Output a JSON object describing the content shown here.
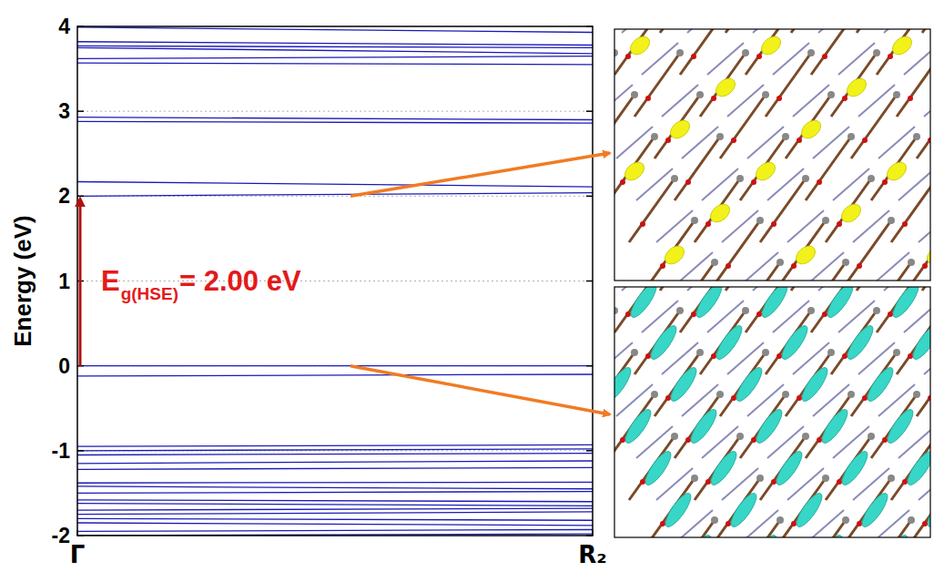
{
  "chart_data": {
    "type": "line",
    "y_label": "Energy (eV)",
    "x": [
      0,
      1
    ],
    "xlim": [
      0,
      1
    ],
    "xticks": [
      {
        "value": 0,
        "label": "Γ"
      },
      {
        "value": 1,
        "label": "R₂"
      }
    ],
    "ylim": [
      -2,
      4
    ],
    "yticks": [
      -2,
      -1,
      0,
      1,
      2,
      3,
      4
    ],
    "grid": true,
    "color": "#1a1ab8",
    "annotation": {
      "text": "E",
      "subscript": "g(HSE)",
      "suffix": "= 2.00 eV",
      "from": 0,
      "to": 2
    },
    "series": [
      {
        "values": [
          3.99,
          3.93
        ]
      },
      {
        "values": [
          3.82,
          3.78
        ]
      },
      {
        "values": [
          3.77,
          3.75
        ]
      },
      {
        "values": [
          3.75,
          3.68
        ]
      },
      {
        "values": [
          3.62,
          3.65
        ]
      },
      {
        "values": [
          3.57,
          3.55
        ]
      },
      {
        "values": [
          2.93,
          2.9
        ]
      },
      {
        "values": [
          2.88,
          2.86
        ]
      },
      {
        "values": [
          2.17,
          2.11
        ]
      },
      {
        "values": [
          2.0,
          2.04
        ]
      },
      {
        "values": [
          0.0,
          0.0
        ]
      },
      {
        "values": [
          -0.12,
          -0.1
        ]
      },
      {
        "values": [
          -0.95,
          -0.93
        ]
      },
      {
        "values": [
          -1.0,
          -0.98
        ]
      },
      {
        "values": [
          -1.05,
          -1.03
        ]
      },
      {
        "values": [
          -1.15,
          -1.12
        ]
      },
      {
        "values": [
          -1.22,
          -1.2
        ]
      },
      {
        "values": [
          -1.38,
          -1.37
        ]
      },
      {
        "values": [
          -1.42,
          -1.45
        ]
      },
      {
        "values": [
          -1.5,
          -1.48
        ]
      },
      {
        "values": [
          -1.58,
          -1.6
        ]
      },
      {
        "values": [
          -1.62,
          -1.65
        ]
      },
      {
        "values": [
          -1.7,
          -1.68
        ]
      },
      {
        "values": [
          -1.75,
          -1.72
        ]
      },
      {
        "values": [
          -1.8,
          -1.82
        ]
      },
      {
        "values": [
          -1.85,
          -1.88
        ]
      },
      {
        "values": [
          -1.95,
          -1.93
        ]
      },
      {
        "values": [
          -2.0,
          -1.98
        ]
      }
    ]
  }
}
